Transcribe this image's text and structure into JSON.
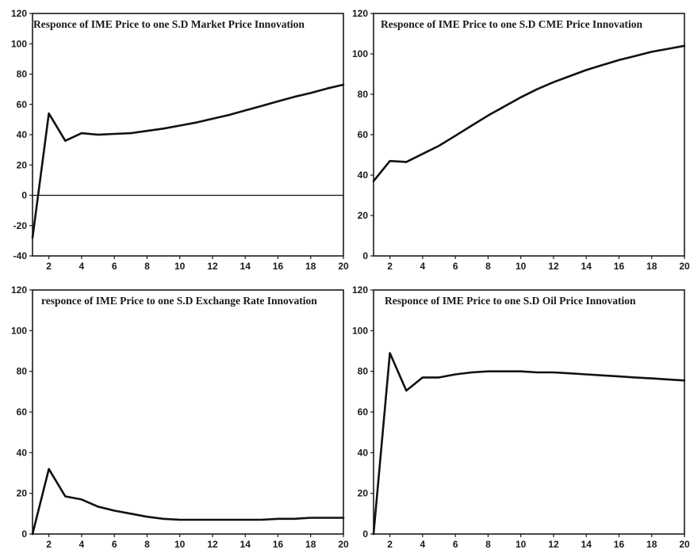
{
  "chart_data": [
    {
      "type": "line",
      "title": "Responce of IME Price to one S.D Market Price Innovation",
      "xlabel": "",
      "ylabel": "",
      "xlim": [
        1,
        20
      ],
      "ylim": [
        -40,
        120
      ],
      "xticks": [
        "2",
        "4",
        "6",
        "8",
        "10",
        "12",
        "14",
        "16",
        "18",
        "20"
      ],
      "yticks": [
        "-40",
        "-20",
        "0",
        "20",
        "40",
        "60",
        "80",
        "100",
        "120"
      ],
      "zero_line": true,
      "series": [
        {
          "x": [
            1,
            2,
            3,
            4,
            5,
            6,
            7,
            8,
            9,
            10,
            11,
            12,
            13,
            14,
            15,
            16,
            17,
            18,
            19,
            20
          ],
          "values": [
            -28,
            54,
            36,
            41,
            40,
            40.5,
            41,
            42.5,
            44,
            46,
            48,
            50.5,
            53,
            56,
            59,
            62,
            65,
            67.5,
            70.5,
            73
          ]
        }
      ]
    },
    {
      "type": "line",
      "title": "Responce of IME Price to one S.D CME Price Innovation",
      "xlabel": "",
      "ylabel": "",
      "xlim": [
        1,
        20
      ],
      "ylim": [
        0,
        120
      ],
      "xticks": [
        "2",
        "4",
        "6",
        "8",
        "10",
        "12",
        "14",
        "16",
        "18",
        "20"
      ],
      "yticks": [
        "0",
        "20",
        "40",
        "60",
        "80",
        "100",
        "120"
      ],
      "zero_line": false,
      "series": [
        {
          "x": [
            1,
            2,
            3,
            4,
            5,
            6,
            7,
            8,
            9,
            10,
            11,
            12,
            13,
            14,
            15,
            16,
            17,
            18,
            19,
            20
          ],
          "values": [
            37,
            47,
            46.5,
            50.5,
            54.5,
            59.5,
            64.5,
            69.5,
            74,
            78.5,
            82.5,
            86,
            89,
            92,
            94.5,
            97,
            99,
            101,
            102.5,
            104
          ]
        }
      ]
    },
    {
      "type": "line",
      "title": "responce of IME Price to one S.D Exchange Rate Innovation",
      "xlabel": "",
      "ylabel": "",
      "xlim": [
        1,
        20
      ],
      "ylim": [
        0,
        120
      ],
      "xticks": [
        "2",
        "4",
        "6",
        "8",
        "10",
        "12",
        "14",
        "16",
        "18",
        "20"
      ],
      "yticks": [
        "0",
        "20",
        "40",
        "60",
        "80",
        "100",
        "120"
      ],
      "zero_line": false,
      "series": [
        {
          "x": [
            1,
            2,
            3,
            4,
            5,
            6,
            7,
            8,
            9,
            10,
            11,
            12,
            13,
            14,
            15,
            16,
            17,
            18,
            19,
            20
          ],
          "values": [
            0,
            32,
            18.5,
            17,
            13.5,
            11.5,
            10,
            8.5,
            7.5,
            7,
            7,
            7,
            7,
            7,
            7,
            7.5,
            7.5,
            8,
            8,
            8
          ]
        }
      ]
    },
    {
      "type": "line",
      "title": "Responce of IME Price to one S.D Oil Price Innovation",
      "xlabel": "",
      "ylabel": "",
      "xlim": [
        1,
        20
      ],
      "ylim": [
        0,
        120
      ],
      "xticks": [
        "2",
        "4",
        "6",
        "8",
        "10",
        "12",
        "14",
        "16",
        "18",
        "20"
      ],
      "yticks": [
        "0",
        "20",
        "40",
        "60",
        "80",
        "100",
        "120"
      ],
      "zero_line": false,
      "series": [
        {
          "x": [
            1,
            2,
            3,
            4,
            5,
            6,
            7,
            8,
            9,
            10,
            11,
            12,
            13,
            14,
            15,
            16,
            17,
            18,
            19,
            20
          ],
          "values": [
            0,
            89,
            70.5,
            77,
            77,
            78.5,
            79.5,
            80,
            80,
            80,
            79.5,
            79.5,
            79,
            78.5,
            78,
            77.5,
            77,
            76.5,
            76,
            75.5
          ]
        }
      ]
    }
  ]
}
